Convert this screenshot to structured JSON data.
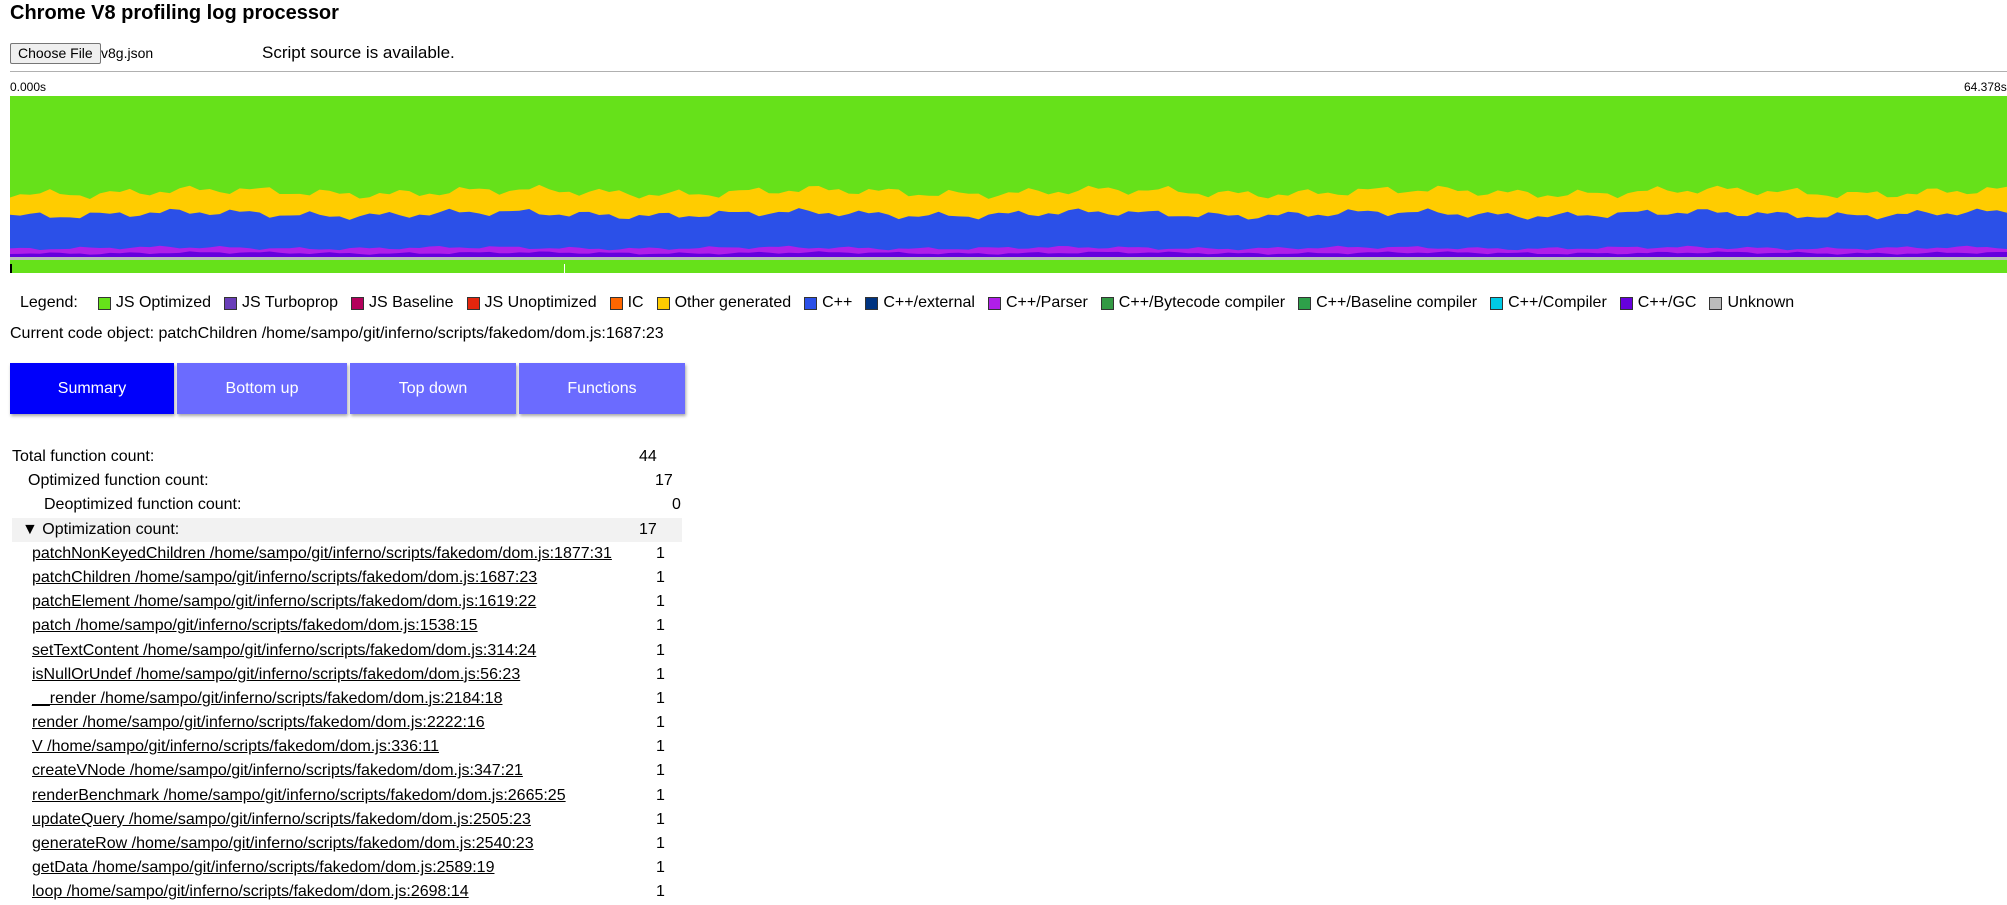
{
  "app_title": "Chrome V8 profiling log processor",
  "file_input": {
    "button_label": "Choose File",
    "file_name": "v8g.json"
  },
  "source_status": "Script source is available.",
  "timeline": {
    "start": "0.000s",
    "end": "64.378s"
  },
  "legend": {
    "label": "Legend:",
    "items": [
      {
        "name": "JS Optimized",
        "color": "#66e11a"
      },
      {
        "name": "JS Turboprop",
        "color": "#693eb8"
      },
      {
        "name": "JS Baseline",
        "color": "#b3005b"
      },
      {
        "name": "JS Unoptimized",
        "color": "#e4260d"
      },
      {
        "name": "IC",
        "color": "#ff6600"
      },
      {
        "name": "Other generated",
        "color": "#ffcc00"
      },
      {
        "name": "C++",
        "color": "#2b50e8"
      },
      {
        "name": "C++/external",
        "color": "#003380"
      },
      {
        "name": "C++/Parser",
        "color": "#b01fe8"
      },
      {
        "name": "C++/Bytecode compiler",
        "color": "#339944"
      },
      {
        "name": "C++/Baseline compiler",
        "color": "#2ea04a"
      },
      {
        "name": "C++/Compiler",
        "color": "#00cbe6"
      },
      {
        "name": "C++/GC",
        "color": "#6600dd"
      },
      {
        "name": "Unknown",
        "color": "#bbbbbb"
      }
    ]
  },
  "current_code": "Current code object: patchChildren /home/sampo/git/inferno/scripts/fakedom/dom.js:1687:23",
  "tabs": [
    {
      "label": "Summary",
      "active": true
    },
    {
      "label": "Bottom up",
      "active": false
    },
    {
      "label": "Top down",
      "active": false
    },
    {
      "label": "Functions",
      "active": false
    }
  ],
  "summary": {
    "total_label": "Total function count:",
    "total_value": "44",
    "optimized_label": "Optimized function count:",
    "optimized_value": "17",
    "deoptimized_label": "Deoptimized function count:",
    "deoptimized_value": "0",
    "optimization_label": "▼ Optimization count:",
    "optimization_value": "17",
    "functions": [
      {
        "name": "patchNonKeyedChildren /home/sampo/git/inferno/scripts/fakedom/dom.js:1877:31",
        "count": "1"
      },
      {
        "name": "patchChildren /home/sampo/git/inferno/scripts/fakedom/dom.js:1687:23",
        "count": "1"
      },
      {
        "name": "patchElement /home/sampo/git/inferno/scripts/fakedom/dom.js:1619:22",
        "count": "1"
      },
      {
        "name": "patch /home/sampo/git/inferno/scripts/fakedom/dom.js:1538:15",
        "count": "1"
      },
      {
        "name": "setTextContent /home/sampo/git/inferno/scripts/fakedom/dom.js:314:24",
        "count": "1"
      },
      {
        "name": "isNullOrUndef /home/sampo/git/inferno/scripts/fakedom/dom.js:56:23",
        "count": "1"
      },
      {
        "name": "__render /home/sampo/git/inferno/scripts/fakedom/dom.js:2184:18",
        "count": "1"
      },
      {
        "name": "render /home/sampo/git/inferno/scripts/fakedom/dom.js:2222:16",
        "count": "1"
      },
      {
        "name": "V /home/sampo/git/inferno/scripts/fakedom/dom.js:336:11",
        "count": "1"
      },
      {
        "name": "createVNode /home/sampo/git/inferno/scripts/fakedom/dom.js:347:21",
        "count": "1"
      },
      {
        "name": "renderBenchmark /home/sampo/git/inferno/scripts/fakedom/dom.js:2665:25",
        "count": "1"
      },
      {
        "name": "updateQuery /home/sampo/git/inferno/scripts/fakedom/dom.js:2505:23",
        "count": "1"
      },
      {
        "name": "generateRow /home/sampo/git/inferno/scripts/fakedom/dom.js:2540:23",
        "count": "1"
      },
      {
        "name": "getData /home/sampo/git/inferno/scripts/fakedom/dom.js:2589:19",
        "count": "1"
      },
      {
        "name": "loop /home/sampo/git/inferno/scripts/fakedom/dom.js:2698:14",
        "count": "1"
      }
    ]
  }
}
